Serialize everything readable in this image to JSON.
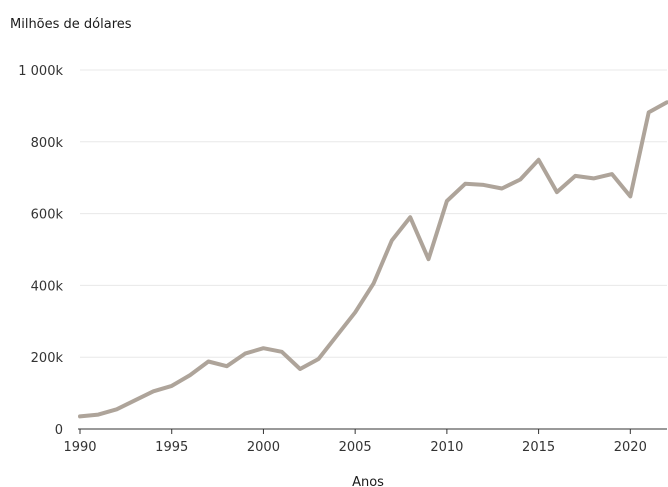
{
  "chart_data": {
    "type": "line",
    "ylabel": "Milhões de dólares",
    "xlabel": "Anos",
    "xlim": [
      1990,
      2022
    ],
    "ylim": [
      0,
      1000000
    ],
    "x_ticks": [
      1990,
      1995,
      2000,
      2005,
      2010,
      2015,
      2020
    ],
    "y_ticks": [
      {
        "value": 0,
        "label": "0"
      },
      {
        "value": 200000,
        "label": "200k"
      },
      {
        "value": 400000,
        "label": "400k"
      },
      {
        "value": 600000,
        "label": "600k"
      },
      {
        "value": 800000,
        "label": "800k"
      },
      {
        "value": 1000000,
        "label": "1 000k"
      }
    ],
    "grid": "horizontal",
    "legend": "none",
    "line_color": "#aea49a",
    "series": [
      {
        "x": [
          1990,
          1991,
          1992,
          1993,
          1994,
          1995,
          1996,
          1997,
          1998,
          1999,
          2000,
          2001,
          2002,
          2003,
          2004,
          2005,
          2006,
          2007,
          2008,
          2009,
          2010,
          2011,
          2012,
          2013,
          2014,
          2015,
          2016,
          2017,
          2018,
          2019,
          2020,
          2021,
          2022
        ],
        "values": [
          35000,
          40000,
          55000,
          80000,
          105000,
          120000,
          150000,
          188000,
          175000,
          210000,
          225000,
          215000,
          167000,
          195000,
          260000,
          325000,
          405000,
          525000,
          590000,
          473000,
          635000,
          683000,
          680000,
          670000,
          695000,
          750000,
          660000,
          705000,
          698000,
          710000,
          648000,
          882000,
          910000
        ]
      }
    ]
  }
}
